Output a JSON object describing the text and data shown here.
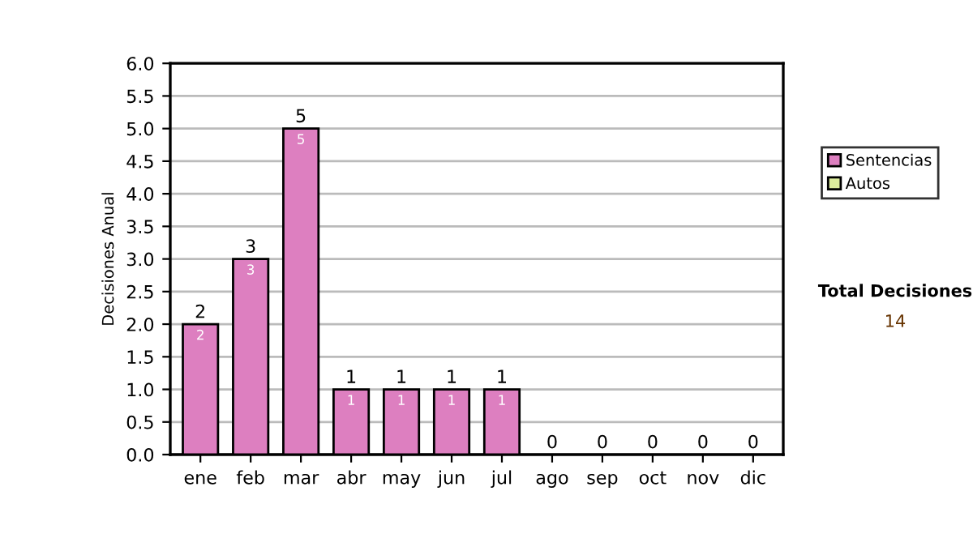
{
  "chart_data": {
    "type": "bar",
    "stacked": true,
    "ylabel": "Decisiones Anual",
    "categories": [
      "ene",
      "feb",
      "mar",
      "abr",
      "may",
      "jun",
      "jul",
      "ago",
      "sep",
      "oct",
      "nov",
      "dic"
    ],
    "series": [
      {
        "name": "Sentencias",
        "color": "#dd7fc0",
        "values": [
          2,
          3,
          5,
          1,
          1,
          1,
          1,
          0,
          0,
          0,
          0,
          0
        ],
        "value_labels": [
          "2",
          "3",
          "5",
          "1",
          "1",
          "1",
          "1",
          null,
          null,
          null,
          null,
          null
        ]
      },
      {
        "name": "Autos",
        "color": "#dcec9c",
        "values": [
          0,
          0,
          0,
          0,
          0,
          0,
          0,
          0,
          0,
          0,
          0,
          0
        ]
      }
    ],
    "totals": [
      "2",
      "3",
      "5",
      "1",
      "1",
      "1",
      "1",
      "0",
      "0",
      "0",
      "0",
      "0"
    ],
    "ylim": [
      0,
      6
    ],
    "yticks": [
      {
        "value": 0,
        "label": "0.0"
      },
      {
        "value": 0.5,
        "label": "0.5"
      },
      {
        "value": 1,
        "label": "1.0"
      },
      {
        "value": 1.5,
        "label": "1.5"
      },
      {
        "value": 2,
        "label": "2.0"
      },
      {
        "value": 2.5,
        "label": "2.5"
      },
      {
        "value": 3,
        "label": "3.0"
      },
      {
        "value": 3.5,
        "label": "3.5"
      },
      {
        "value": 4,
        "label": "4.0"
      },
      {
        "value": 4.5,
        "label": "4.5"
      },
      {
        "value": 5,
        "label": "5.0"
      },
      {
        "value": 5.5,
        "label": "5.5"
      },
      {
        "value": 6,
        "label": "6.0"
      }
    ],
    "grid": "y",
    "legend": "right",
    "annotations": [
      "Total Decisiones",
      "14"
    ]
  }
}
